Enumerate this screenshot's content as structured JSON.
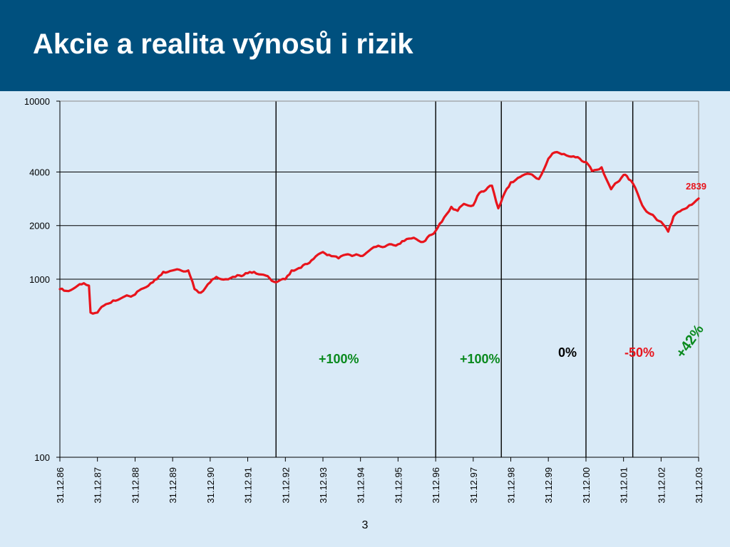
{
  "header": {
    "title": "Akcie a realita výnosů i rizik"
  },
  "footer": {
    "page_number": "3"
  },
  "colors": {
    "header_bg": "#00507e",
    "background": "#d9eaf7",
    "line": "#e8141c",
    "positive": "#0a8a1e",
    "negative": "#e8141c",
    "neutral": "#000000"
  },
  "chart_data": {
    "type": "line",
    "title": "",
    "xlabel": "",
    "ylabel": "",
    "y_scale": "log",
    "ylim": [
      100,
      10000
    ],
    "y_ticks": [
      100,
      1000,
      2000,
      4000,
      10000
    ],
    "y_gridlines": [
      1000,
      2000,
      4000
    ],
    "x_ticks": [
      "31.12.86",
      "31.12.87",
      "31.12.88",
      "31.12.89",
      "31.12.90",
      "31.12.91",
      "31.12.92",
      "31.12.93",
      "31.12.94",
      "31.12.95",
      "31.12.96",
      "31.12.97",
      "31.12.98",
      "31.12.99",
      "31.12.00",
      "31.12.01",
      "31.12.02",
      "31.12.03"
    ],
    "series": [
      {
        "color": "#e8141c",
        "points": [
          [
            "31.12.86",
            880
          ],
          [
            "1987-03-01",
            860
          ],
          [
            "1987-06-01",
            900
          ],
          [
            "1987-08-20",
            950
          ],
          [
            "1987-10-10",
            920
          ],
          [
            "1987-10-25",
            650
          ],
          [
            "1987-12-31",
            650
          ],
          [
            "1988-03-01",
            710
          ],
          [
            "1988-06-01",
            760
          ],
          [
            "1988-09-01",
            790
          ],
          [
            "1988-12-31",
            820
          ],
          [
            "1989-03-01",
            880
          ],
          [
            "1989-06-01",
            950
          ],
          [
            "1989-08-01",
            1000
          ],
          [
            "1989-10-01",
            1100
          ],
          [
            "1989-12-31",
            1120
          ],
          [
            "1990-06-01",
            1120
          ],
          [
            "1990-08-01",
            880
          ],
          [
            "1990-10-01",
            840
          ],
          [
            "1990-12-31",
            960
          ],
          [
            "1991-03-01",
            1030
          ],
          [
            "1991-06-01",
            1000
          ],
          [
            "1991-09-01",
            1030
          ],
          [
            "1991-12-31",
            1080
          ],
          [
            "1992-03-01",
            1100
          ],
          [
            "1992-06-01",
            1060
          ],
          [
            "1992-10-01",
            960
          ],
          [
            "31.12.92",
            1000
          ],
          [
            "1993-03-01",
            1120
          ],
          [
            "1993-06-01",
            1160
          ],
          [
            "1993-10-01",
            1300
          ],
          [
            "31.12.93",
            1420
          ],
          [
            "1994-03-01",
            1370
          ],
          [
            "1994-06-01",
            1310
          ],
          [
            "1994-09-01",
            1380
          ],
          [
            "31.12.94",
            1350
          ],
          [
            "1995-03-01",
            1410
          ],
          [
            "1995-06-01",
            1520
          ],
          [
            "31.12.95",
            1570
          ],
          [
            "1996-03-01",
            1640
          ],
          [
            "1996-06-01",
            1710
          ],
          [
            "1996-09-01",
            1620
          ],
          [
            "31.12.96",
            1870
          ],
          [
            "1997-03-01",
            2100
          ],
          [
            "1997-06-01",
            2550
          ],
          [
            "1997-08-01",
            2420
          ],
          [
            "1997-10-01",
            2650
          ],
          [
            "31.12.97",
            2600
          ],
          [
            "1998-03-01",
            3050
          ],
          [
            "1998-07-01",
            3350
          ],
          [
            "1998-09-01",
            2500
          ],
          [
            "1998-10-15",
            2900
          ],
          [
            "31.12.98",
            3500
          ],
          [
            "1999-04-01",
            3750
          ],
          [
            "1999-07-01",
            3900
          ],
          [
            "1999-10-01",
            3650
          ],
          [
            "31.12.99",
            4750
          ],
          [
            "2000-03-01",
            5150
          ],
          [
            "2000-06-01",
            5050
          ],
          [
            "2000-09-01",
            4900
          ],
          [
            "31.12.00",
            4550
          ],
          [
            "2001-03-01",
            4050
          ],
          [
            "2001-06-01",
            4250
          ],
          [
            "2001-09-01",
            3200
          ],
          [
            "31.12.01",
            3850
          ],
          [
            "2002-02-01",
            3800
          ],
          [
            "2002-04-01",
            3450
          ],
          [
            "2002-07-01",
            2600
          ],
          [
            "2002-09-01",
            2350
          ],
          [
            "31.12.02",
            2100
          ],
          [
            "2003-03-10",
            1850
          ],
          [
            "2003-05-01",
            2250
          ],
          [
            "2003-07-01",
            2400
          ],
          [
            "2003-10-01",
            2600
          ],
          [
            "31.12.03",
            2839
          ]
        ]
      }
    ],
    "period_dividers": [
      "1992-10-01",
      "31.12.96",
      "1998-09-30",
      "31.12.00",
      "2002-03-31"
    ],
    "annotations": [
      {
        "text": "2839",
        "color": "#e8141c"
      },
      {
        "text": "+100%",
        "color": "#0a8a1e"
      },
      {
        "text": "+100%",
        "color": "#0a8a1e"
      },
      {
        "text": "0%",
        "color": "#000000"
      },
      {
        "text": "-50%",
        "color": "#e8141c"
      },
      {
        "text": "+42%",
        "color": "#0a8a1e"
      }
    ]
  }
}
